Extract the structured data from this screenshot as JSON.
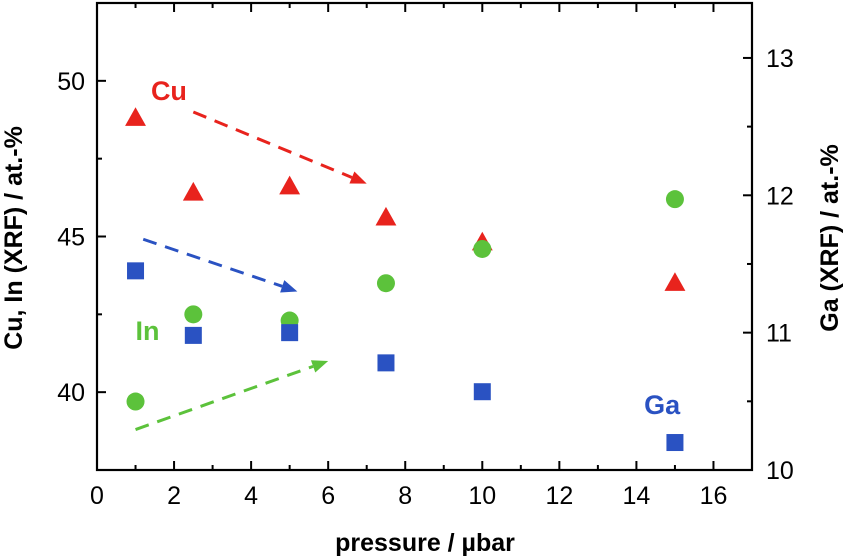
{
  "chart_data": {
    "type": "scatter",
    "xlabel": "pressure / µbar",
    "ylabel_left": "Cu, In (XRF) / at.-%",
    "ylabel_right": "Ga (XRF) / at.-%",
    "xlim": [
      0,
      17
    ],
    "ylim_left": [
      37.5,
      52.5
    ],
    "ylim_right": [
      10,
      13.4
    ],
    "x_ticks": [
      0,
      2,
      4,
      6,
      8,
      10,
      12,
      14,
      16
    ],
    "y_ticks_left": [
      40,
      45,
      50
    ],
    "y_ticks_right": [
      10,
      11,
      12,
      13
    ],
    "grid": false,
    "series": [
      {
        "name": "Cu",
        "axis": "left",
        "marker": "triangle",
        "color": "#e8231d",
        "x": [
          1,
          2.5,
          5,
          7.5,
          10,
          15
        ],
        "y": [
          48.8,
          46.4,
          46.6,
          45.6,
          44.8,
          43.5
        ]
      },
      {
        "name": "In",
        "axis": "left",
        "marker": "circle",
        "color": "#5cc23b",
        "x": [
          1,
          2.5,
          5,
          7.5,
          10,
          15
        ],
        "y": [
          39.7,
          42.5,
          42.3,
          43.5,
          44.6,
          46.2
        ]
      },
      {
        "name": "Ga",
        "axis": "right",
        "marker": "square",
        "color": "#2a52c2",
        "x": [
          1,
          2.5,
          5,
          7.5,
          10,
          15
        ],
        "y": [
          11.45,
          10.98,
          11.0,
          10.78,
          10.57,
          10.2
        ]
      }
    ],
    "trend_arrows": [
      {
        "series": "Cu",
        "axis": "left",
        "color": "#e8231d",
        "from": [
          2.5,
          49.0
        ],
        "to": [
          7,
          46.7
        ]
      },
      {
        "series": "Ga",
        "axis": "right",
        "color": "#2a52c2",
        "from": [
          1.2,
          11.68
        ],
        "to": [
          5.2,
          11.3
        ]
      },
      {
        "series": "In",
        "axis": "left",
        "color": "#5cc23b",
        "from": [
          1,
          38.8
        ],
        "to": [
          6,
          41.0
        ]
      }
    ],
    "annotations": [
      {
        "text": "Cu",
        "series": "Cu",
        "color": "#e8231d",
        "x": 1.4,
        "y": 49.7,
        "axis": "left"
      },
      {
        "text": "In",
        "series": "In",
        "color": "#5cc23b",
        "x": 1.0,
        "y": 42.0,
        "axis": "left"
      },
      {
        "text": "Ga",
        "series": "Ga",
        "color": "#2a52c2",
        "x": 14.2,
        "y": 10.48,
        "axis": "right"
      }
    ]
  }
}
